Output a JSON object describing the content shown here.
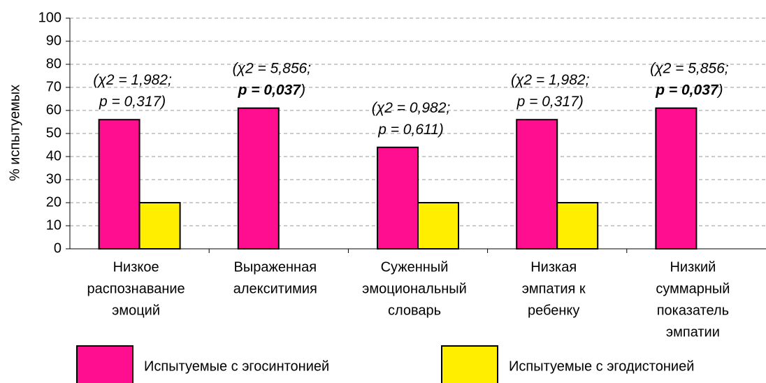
{
  "chart_data": {
    "type": "bar",
    "y_label": "% испытуемых",
    "categories": [
      [
        "Низкое",
        "распознавание",
        "эмоций"
      ],
      [
        "Выраженная",
        "алекситимия"
      ],
      [
        "Суженный",
        "эмоциональный",
        "словарь"
      ],
      [
        "Низкая",
        "эмпатия к",
        "ребенку"
      ],
      [
        "Низкий",
        "суммарный",
        "показатель",
        "эмпатии"
      ]
    ],
    "series": [
      {
        "name": "Испытуемые с эгосинтонией",
        "color": "#ff0f8f",
        "values": [
          56,
          61,
          44,
          56,
          61
        ]
      },
      {
        "name": "Испытуемые с эгодистонией",
        "color": "#ffee00",
        "values": [
          20,
          null,
          20,
          20,
          null
        ]
      }
    ],
    "annotations": [
      [
        [
          {
            "text": "(χ2 = 1,982;",
            "bold": false
          }
        ],
        [
          {
            "text": "p = 0,317)",
            "bold": false
          }
        ]
      ],
      [
        [
          {
            "text": "(χ2 = 5,856;",
            "bold": false
          }
        ],
        [
          {
            "text": "p = 0,037",
            "bold": true
          },
          {
            "text": ")",
            "bold": false
          }
        ]
      ],
      [
        [
          {
            "text": "(χ2 = 0,982;",
            "bold": false
          }
        ],
        [
          {
            "text": "p = 0,611)",
            "bold": false
          }
        ]
      ],
      [
        [
          {
            "text": "(χ2 = 1,982;",
            "bold": false
          }
        ],
        [
          {
            "text": "p = 0,317)",
            "bold": false
          }
        ]
      ],
      [
        [
          {
            "text": "(χ2 = 5,856;",
            "bold": false
          }
        ],
        [
          {
            "text": "p = 0,037",
            "bold": true
          },
          {
            "text": ")",
            "bold": false
          }
        ]
      ]
    ],
    "ylim": [
      0,
      100
    ],
    "yticks": [
      0,
      10,
      20,
      30,
      40,
      50,
      60,
      70,
      80,
      90,
      100
    ],
    "grid": true
  }
}
